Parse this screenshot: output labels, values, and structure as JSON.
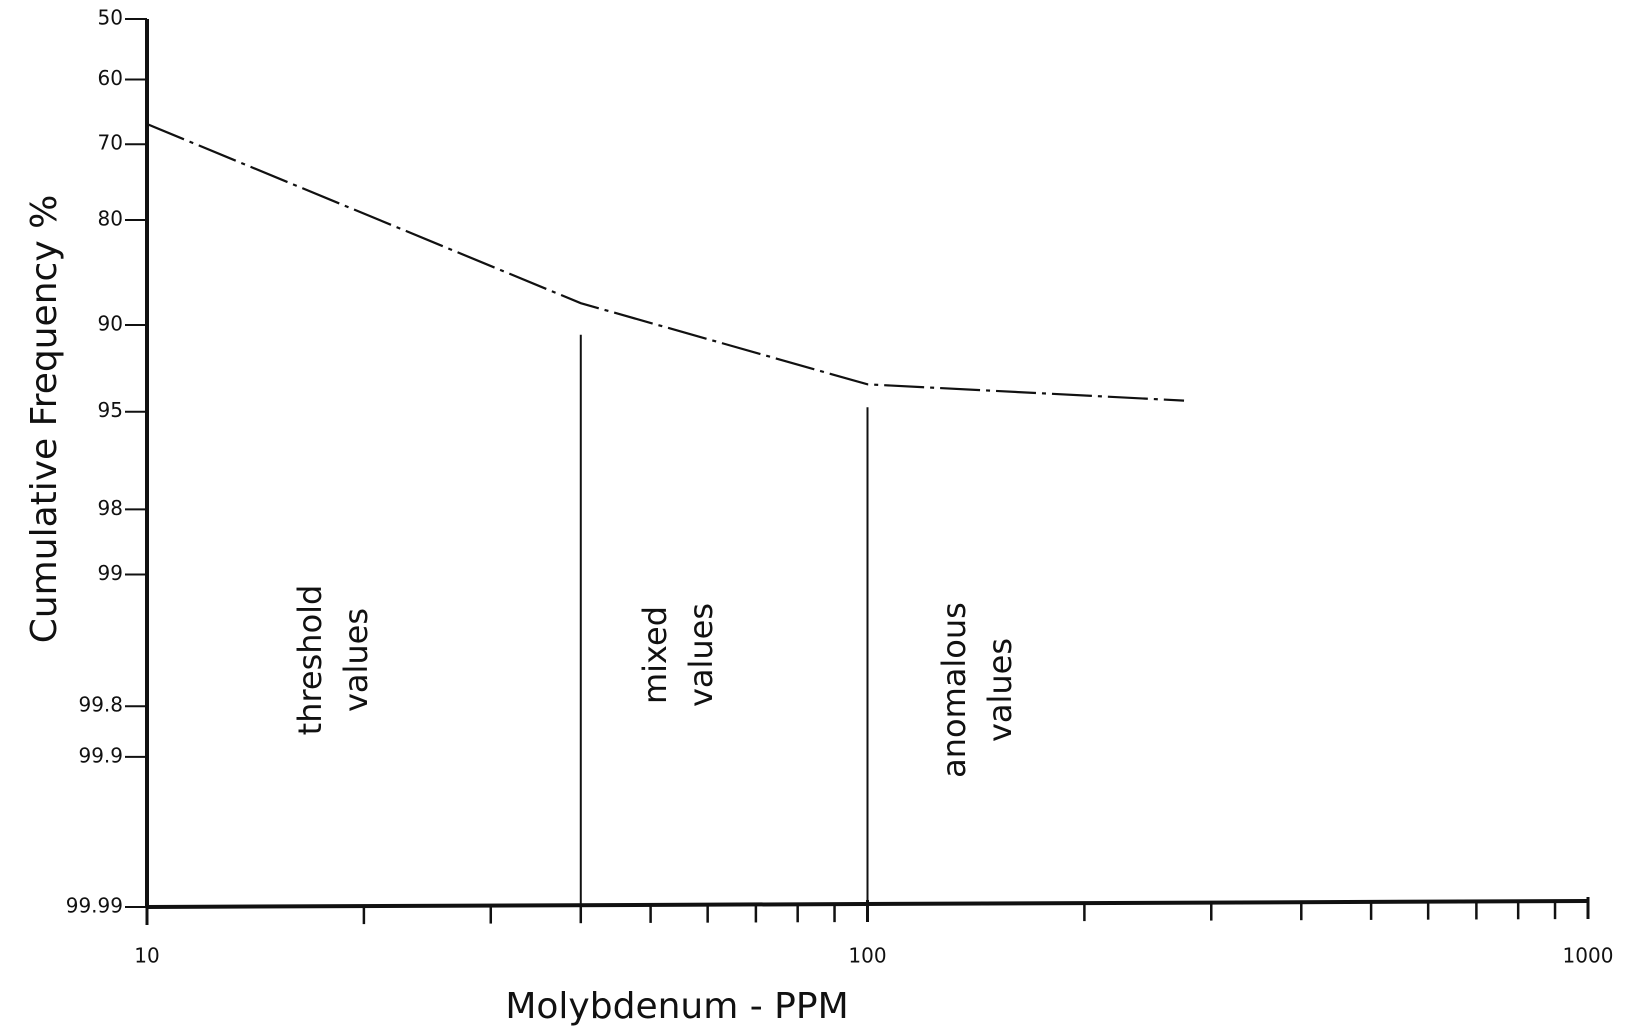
{
  "chart_data": {
    "type": "line",
    "title_y": "Cumulative Frequency %",
    "title_x": "Molybdenum - PPM",
    "x": [
      10,
      40,
      100,
      275
    ],
    "series": [
      {
        "name": "Molybdenum",
        "color": "#111111",
        "values": [
          67,
          88.3,
          93.7,
          94.5
        ]
      }
    ],
    "xscale": "log",
    "yscale": "probability",
    "xlim": [
      10,
      1000
    ],
    "ylim": [
      50,
      99.99
    ],
    "xticks": [
      10,
      100,
      1000
    ],
    "xminor_ticks": [
      20,
      30,
      40,
      50,
      60,
      70,
      80,
      90,
      200,
      300,
      400,
      500,
      600,
      700,
      800,
      900
    ],
    "yticks": [
      50,
      60,
      70,
      80,
      90,
      95,
      98,
      99,
      99.8,
      99.9,
      99.99
    ],
    "dividers": [
      {
        "x": 40,
        "top": 90.7
      },
      {
        "x": 100,
        "top": 94.8
      }
    ],
    "region_labels": [
      [
        "threshold",
        "values"
      ],
      [
        "mixed",
        "values"
      ],
      [
        "anomalous",
        "values"
      ]
    ],
    "grid": false
  }
}
